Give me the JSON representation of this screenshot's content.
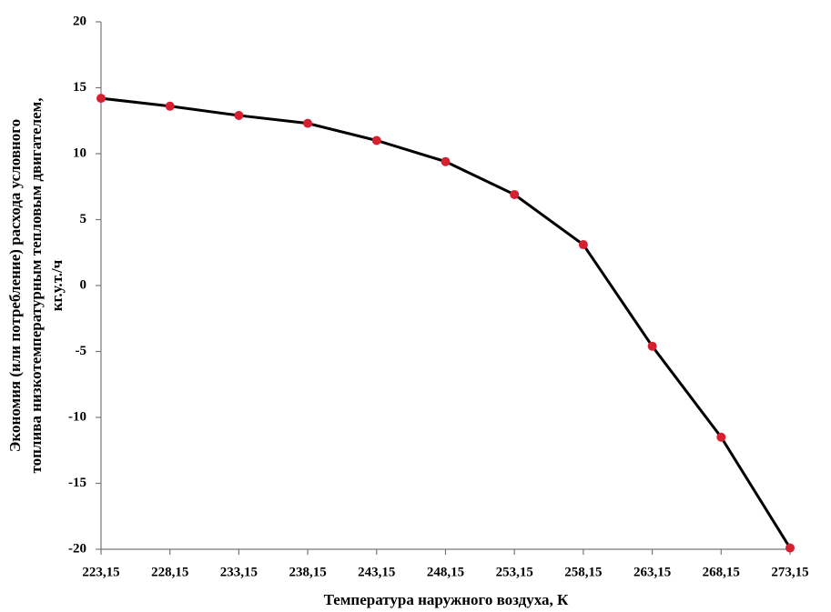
{
  "chart_data": {
    "type": "line",
    "xlabel": "Температура наружного воздуха, К",
    "ylabel": [
      "Экономия (или потребление) расхода условного",
      "топлива  низкотемпературным тепловым двигателем,",
      "кг.у.т./ч"
    ],
    "x": [
      223.15,
      228.15,
      233.15,
      238.15,
      243.15,
      248.15,
      253.15,
      258.15,
      263.15,
      268.15,
      273.15
    ],
    "series": [
      {
        "color": "#000000",
        "marker_color": "#d62030",
        "values": [
          14.2,
          13.6,
          12.9,
          12.3,
          11.0,
          9.4,
          6.9,
          3.1,
          -4.6,
          -11.5,
          -19.9
        ]
      }
    ],
    "xlim": [
      223.15,
      273.15
    ],
    "xticks": [
      {
        "value": 223.15,
        "label": "223,15"
      },
      {
        "value": 228.15,
        "label": "228,15"
      },
      {
        "value": 233.15,
        "label": "233,15"
      },
      {
        "value": 238.15,
        "label": "238,15"
      },
      {
        "value": 243.15,
        "label": "243,15"
      },
      {
        "value": 248.15,
        "label": "248,15"
      },
      {
        "value": 253.15,
        "label": "253,15"
      },
      {
        "value": 258.15,
        "label": "258,15"
      },
      {
        "value": 263.15,
        "label": "263,15"
      },
      {
        "value": 268.15,
        "label": "268,15"
      },
      {
        "value": 273.15,
        "label": "273,15"
      }
    ],
    "ylim": [
      -20,
      20
    ],
    "yticks": [
      -20,
      -15,
      -10,
      -5,
      0,
      5,
      10,
      15,
      20
    ],
    "grid": false
  }
}
